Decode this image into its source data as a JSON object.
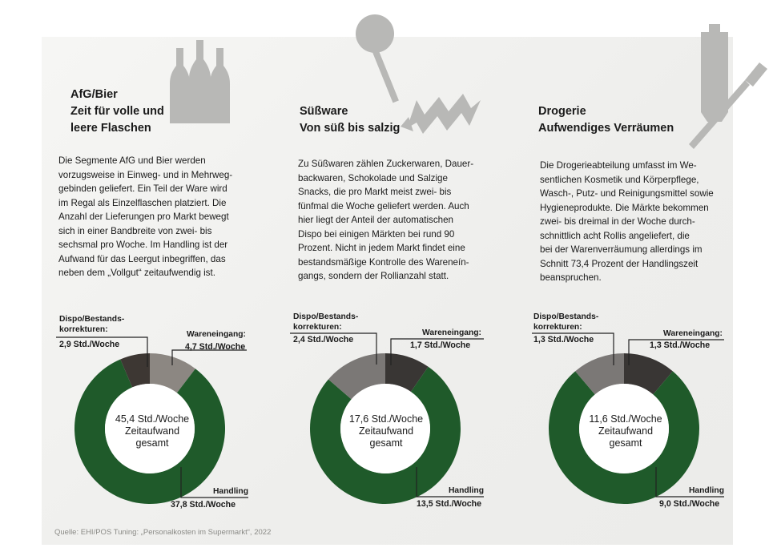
{
  "colors": {
    "handling": "#1f5a2a",
    "wareneingang_col1": "#8c8782",
    "dispo_col1": "#3d3733",
    "wareneingang": "#393634",
    "dispo": "#7b7876",
    "icon_grey": "#b8b8b6"
  },
  "icons": [
    "bottles-icon",
    "lollipop-candy-icon",
    "toothpaste-toothbrush-icon"
  ],
  "segments": [
    {
      "heading": [
        "AfG/Bier",
        "Zeit für volle und",
        "leere Flaschen"
      ],
      "text": [
        "Die Segmente AfG und Bier werden",
        "vorzugsweise in Einweg- und in Mehrweg-",
        "gebinden geliefert. Ein Teil der Ware wird",
        "im Regal als Einzelflaschen platziert. Die",
        "Anzahl der Lieferungen pro Markt bewegt",
        "sich in einer Bandbreite von zwei- bis",
        "sechsmal pro Woche. Im Handling ist der",
        "Aufwand für das Leergut inbegriffen, das",
        "neben dem „Vollgut“ zeitaufwendig ist."
      ],
      "dispo_label": [
        "Dispo/Bestands-",
        "korrekturen:"
      ],
      "dispo_value": "2,9 Std./Woche",
      "wareneingang_label": "Wareneingang:",
      "wareneingang_value": "4,7 Std./Woche",
      "handling_label": "Handling",
      "handling_value": "37,8 Std./Woche",
      "center": [
        "45,4 Std./Woche",
        "Zeitaufwand",
        "gesamt"
      ]
    },
    {
      "heading": [
        "Süßware",
        "Von süß bis salzig"
      ],
      "text": [
        "Zu Süßwaren zählen Zuckerwaren, Dauer-",
        "backwaren, Schokolade und Salzige",
        "Snacks, die pro Markt meist zwei- bis",
        "fünfmal die Woche geliefert werden. Auch",
        "hier liegt der Anteil der automatischen",
        "Dispo bei einigen Märkten bei rund 90",
        "Prozent. Nicht in jedem Markt findet eine",
        "bestandsmäßige Kontrolle des Wareneín-",
        "gangs, sondern der Rollianzahl statt."
      ],
      "dispo_label": [
        "Dispo/Bestands-",
        "korrekturen:"
      ],
      "dispo_value": "2,4 Std./Woche",
      "wareneingang_label": "Wareneingang:",
      "wareneingang_value": "1,7 Std./Woche",
      "handling_label": "Handling",
      "handling_value": "13,5 Std./Woche",
      "center": [
        "17,6 Std./Woche",
        "Zeitaufwand",
        "gesamt"
      ]
    },
    {
      "heading": [
        "Drogerie",
        "Aufwendiges Verräumen"
      ],
      "text": [
        "Die Drogerieabteilung umfasst im We-",
        "sentlichen Kosmetik und Körperpflege,",
        "Wasch-, Putz- und Reinigungsmittel sowie",
        "Hygieneprodukte. Die Märkte bekommen",
        "zwei- bis dreimal in der Woche durch-",
        "schnittlich acht Rollis angeliefert, die",
        "bei der Warenverräumung allerdings im",
        "Schnitt 73,4 Prozent der Handlingszeit",
        "beanspruchen."
      ],
      "dispo_label": [
        "Dispo/Bestands-",
        "korrekturen:"
      ],
      "dispo_value": "1,3 Std./Woche",
      "wareneingang_label": "Wareneingang:",
      "wareneingang_value": "1,3 Std./Woche",
      "handling_label": "Handling",
      "handling_value": "9,0 Std./Woche",
      "center": [
        "11,6 Std./Woche",
        "Zeitaufwand",
        "gesamt"
      ]
    }
  ],
  "chart_data": [
    {
      "type": "pie",
      "donut": true,
      "categories": [
        "Wareneingang",
        "Handling",
        "Dispo/Bestandskorrekturen"
      ],
      "values": [
        4.7,
        37.8,
        2.9
      ],
      "unit": "Std./Woche",
      "total": 45.4
    },
    {
      "type": "pie",
      "donut": true,
      "categories": [
        "Wareneingang",
        "Handling",
        "Dispo/Bestandskorrekturen"
      ],
      "values": [
        1.7,
        13.5,
        2.4
      ],
      "unit": "Std./Woche",
      "total": 17.6
    },
    {
      "type": "pie",
      "donut": true,
      "categories": [
        "Wareneingang",
        "Handling",
        "Dispo/Bestandskorrekturen"
      ],
      "values": [
        1.3,
        9.0,
        1.3
      ],
      "unit": "Std./Woche",
      "total": 11.6
    }
  ],
  "source": "Quelle: EHI/POS Tuning: „Personalkosten im Supermarkt“, 2022"
}
